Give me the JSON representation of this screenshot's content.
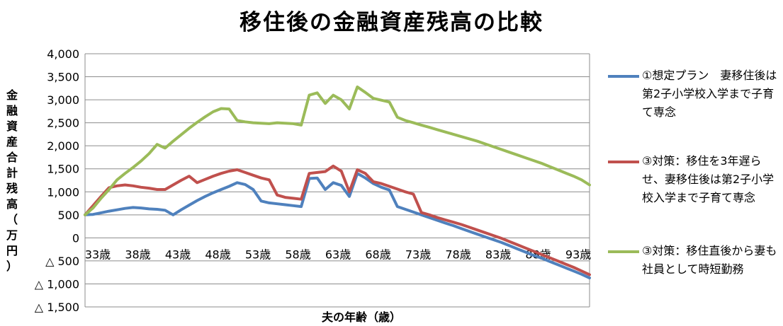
{
  "chart_data": {
    "type": "line",
    "title": "移住後の金融資産残高の比較",
    "xlabel": "夫の年齢（歳）",
    "ylabel": "金融資産合計残高（万円）",
    "ylim": [
      -1500,
      4000
    ],
    "yticks": [
      4000,
      3500,
      3000,
      2500,
      2000,
      1500,
      1000,
      500,
      0,
      -500,
      -1000,
      -1500
    ],
    "ytick_labels": [
      "4,000",
      "3,500",
      "3,000",
      "2,500",
      "2,000",
      "1,500",
      "1,000",
      "500",
      "0",
      "△ 500",
      "△ 1,000",
      "△ 1,500"
    ],
    "xrange": [
      33,
      96
    ],
    "xticks": [
      33,
      38,
      43,
      48,
      53,
      58,
      63,
      68,
      73,
      78,
      83,
      88,
      93
    ],
    "xtick_labels": [
      "33歳",
      "38歳",
      "43歳",
      "48歳",
      "53歳",
      "58歳",
      "63歳",
      "68歳",
      "73歳",
      "78歳",
      "83歳",
      "88歳",
      "93歳"
    ],
    "grid": true,
    "legend_position": "right",
    "series": [
      {
        "name": "①想定プラン　妻移住後は第2子小学校入学まで子育て専念",
        "color": "#4f81bd",
        "x": [
          33,
          34,
          35,
          36,
          37,
          38,
          39,
          40,
          41,
          42,
          43,
          44,
          45,
          46,
          47,
          48,
          49,
          50,
          51,
          52,
          53,
          54,
          55,
          56,
          57,
          58,
          59,
          60,
          61,
          62,
          63,
          64,
          65,
          66,
          67,
          68,
          69,
          70,
          71,
          72,
          73,
          74,
          75,
          76,
          77,
          78,
          79,
          80,
          81,
          82,
          83,
          84,
          85,
          86,
          87,
          88,
          89,
          90,
          91,
          92,
          93,
          94,
          95,
          96
        ],
        "y": [
          500,
          510,
          545,
          580,
          610,
          640,
          660,
          650,
          630,
          620,
          600,
          500,
          610,
          710,
          810,
          900,
          980,
          1050,
          1120,
          1200,
          1160,
          1050,
          800,
          760,
          740,
          720,
          700,
          680,
          1290,
          1300,
          1050,
          1200,
          1140,
          900,
          1400,
          1300,
          1180,
          1100,
          1040,
          680,
          620,
          560,
          500,
          440,
          380,
          320,
          265,
          200,
          140,
          80,
          20,
          -40,
          -100,
          -170,
          -240,
          -310,
          -380,
          -440,
          -510,
          -580,
          -650,
          -720,
          -790,
          -870
        ]
      },
      {
        "name": "③対策：移住を3年遅らせ、妻移住後は第2子小学校入学まで子育て専念",
        "color": "#c0504d",
        "x": [
          33,
          34,
          35,
          36,
          37,
          38,
          39,
          40,
          41,
          42,
          43,
          44,
          45,
          46,
          47,
          48,
          49,
          50,
          51,
          52,
          53,
          54,
          55,
          56,
          57,
          58,
          59,
          60,
          61,
          62,
          63,
          64,
          65,
          66,
          67,
          68,
          69,
          70,
          71,
          72,
          73,
          74,
          75,
          76,
          77,
          78,
          79,
          80,
          81,
          82,
          83,
          84,
          85,
          86,
          87,
          88,
          89,
          90,
          91,
          92,
          93,
          94,
          95,
          96
        ],
        "y": [
          500,
          700,
          900,
          1090,
          1130,
          1150,
          1130,
          1100,
          1080,
          1050,
          1050,
          1150,
          1250,
          1340,
          1200,
          1270,
          1340,
          1400,
          1450,
          1480,
          1420,
          1360,
          1300,
          1260,
          930,
          880,
          860,
          840,
          1400,
          1420,
          1440,
          1560,
          1450,
          1000,
          1480,
          1400,
          1220,
          1180,
          1120,
          1060,
          1000,
          950,
          550,
          500,
          440,
          390,
          340,
          290,
          230,
          170,
          110,
          50,
          -10,
          -80,
          -150,
          -220,
          -290,
          -360,
          -430,
          -500,
          -570,
          -640,
          -720,
          -800
        ]
      },
      {
        "name": "③対策：移住直後から妻も社員として時短勤務",
        "color": "#9bbb59",
        "x": [
          33,
          34,
          35,
          36,
          37,
          38,
          39,
          40,
          41,
          42,
          43,
          44,
          45,
          46,
          47,
          48,
          49,
          50,
          51,
          52,
          53,
          54,
          55,
          56,
          57,
          58,
          59,
          60,
          61,
          62,
          63,
          64,
          65,
          66,
          67,
          68,
          69,
          70,
          71,
          72,
          73,
          74,
          75,
          76,
          77,
          78,
          79,
          80,
          81,
          82,
          83,
          84,
          85,
          86,
          87,
          88,
          89,
          90,
          91,
          92,
          93,
          94,
          95,
          96
        ],
        "y": [
          500,
          650,
          860,
          1050,
          1260,
          1400,
          1530,
          1670,
          1830,
          2030,
          1950,
          2100,
          2240,
          2380,
          2510,
          2630,
          2740,
          2810,
          2800,
          2550,
          2520,
          2500,
          2490,
          2480,
          2500,
          2490,
          2480,
          2450,
          3100,
          3150,
          2920,
          3100,
          3000,
          2800,
          3280,
          3160,
          3030,
          2990,
          2950,
          2620,
          2550,
          2500,
          2450,
          2400,
          2350,
          2300,
          2250,
          2200,
          2150,
          2100,
          2040,
          1980,
          1920,
          1860,
          1800,
          1740,
          1680,
          1620,
          1550,
          1480,
          1410,
          1340,
          1260,
          1150
        ]
      }
    ]
  }
}
